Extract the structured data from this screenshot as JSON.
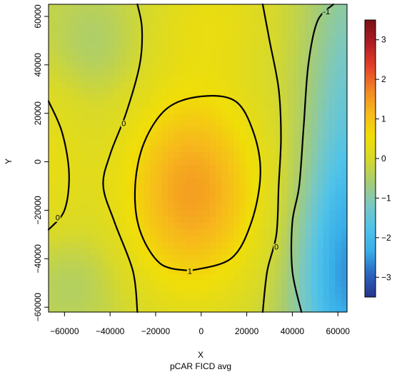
{
  "chart_data": {
    "type": "heatmap",
    "xlabel": "X",
    "ylabel": "Y",
    "subtitle": "pCAR FICD avg",
    "xlim": [
      -67000,
      64000
    ],
    "ylim": [
      -62000,
      65000
    ],
    "x_ticks": [
      -60000,
      -40000,
      -20000,
      0,
      20000,
      40000,
      60000
    ],
    "x_tick_labels": [
      "−60000",
      "−40000",
      "−20000",
      "0",
      "20000",
      "40000",
      "60000"
    ],
    "y_ticks": [
      -60000,
      -40000,
      -20000,
      0,
      20000,
      40000,
      60000
    ],
    "y_tick_labels": [
      "−60000",
      "−40000",
      "−20000",
      "0",
      "20000",
      "40000",
      "60000"
    ],
    "colorbar": {
      "range": [
        -3.5,
        3.5
      ],
      "ticks": [
        -3,
        -2,
        -1,
        0,
        1,
        2,
        3
      ],
      "tick_labels": [
        "−3",
        "−2",
        "−1",
        "0",
        "1",
        "2",
        "3"
      ],
      "colors": [
        "#27348b",
        "#2a64c0",
        "#38aee8",
        "#4fc3ea",
        "#79c8c3",
        "#a6cc74",
        "#d7d92a",
        "#f0de08",
        "#f7b81c",
        "#f18525",
        "#e5402a",
        "#b01e25",
        "#7c1116"
      ]
    },
    "grid": false,
    "legend": "colorbar-right",
    "field_model": {
      "baseline": -0.25,
      "components": [
        {
          "kind": "gaussian",
          "amp": 1.7,
          "cx": -4000,
          "cy": -12000,
          "sx": 23000,
          "sy": 32000
        },
        {
          "kind": "gaussian",
          "amp": 0.55,
          "cx": 5000,
          "cy": 62000,
          "sx": 20000,
          "sy": 18000
        },
        {
          "kind": "gaussian",
          "amp": 0.55,
          "cx": -67000,
          "cy": 0,
          "sx": 14000,
          "sy": 32000
        },
        {
          "kind": "gaussian",
          "amp": -1.9,
          "cx": 64000,
          "cy": -52000,
          "sx": 16000,
          "sy": 35000
        },
        {
          "kind": "gaussian",
          "amp": -1.0,
          "cx": 64000,
          "cy": 20000,
          "sx": 12000,
          "sy": 50000
        },
        {
          "kind": "gaussian",
          "amp": -0.35,
          "cx": -48000,
          "cy": 48000,
          "sx": 14000,
          "sy": 14000
        },
        {
          "kind": "gaussian",
          "amp": -0.35,
          "cx": -58000,
          "cy": -48000,
          "sx": 14000,
          "sy": 14000
        }
      ]
    },
    "contours": [
      {
        "level": 1,
        "label": "1",
        "label_at": [
          -5000,
          -45000
        ],
        "points": [
          [
            -5000,
            -45000
          ],
          [
            -18000,
            -42000
          ],
          [
            -27000,
            -28000
          ],
          [
            -29000,
            -10000
          ],
          [
            -25000,
            8000
          ],
          [
            -15000,
            22000
          ],
          [
            0,
            27000
          ],
          [
            15000,
            25000
          ],
          [
            23000,
            12000
          ],
          [
            26000,
            -5000
          ],
          [
            22000,
            -25000
          ],
          [
            13000,
            -40000
          ],
          [
            -5000,
            -45000
          ]
        ]
      },
      {
        "level": 0,
        "label": "0",
        "label_at": [
          -34000,
          16000
        ],
        "points": [
          [
            -28000,
            -62000
          ],
          [
            -30000,
            -45000
          ],
          [
            -38000,
            -25000
          ],
          [
            -43000,
            -10000
          ],
          [
            -40000,
            3000
          ],
          [
            -33000,
            20000
          ],
          [
            -27000,
            40000
          ],
          [
            -26000,
            55000
          ],
          [
            -28000,
            65000
          ]
        ]
      },
      {
        "level": 0,
        "label": "0",
        "label_at": [
          33000,
          -35000
        ],
        "points": [
          [
            27000,
            65000
          ],
          [
            30000,
            50000
          ],
          [
            34000,
            30000
          ],
          [
            35000,
            10000
          ],
          [
            34000,
            -10000
          ],
          [
            33000,
            -30000
          ],
          [
            29000,
            -45000
          ],
          [
            27000,
            -62000
          ]
        ]
      },
      {
        "level": 0,
        "label": "0",
        "label_at": [
          -63000,
          -23000
        ],
        "points": [
          [
            -67000,
            25000
          ],
          [
            -61000,
            12000
          ],
          [
            -58000,
            -5000
          ],
          [
            -60000,
            -20000
          ],
          [
            -67000,
            -28000
          ]
        ]
      },
      {
        "level": -1,
        "label": "-1",
        "label_at": [
          55000,
          62000
        ],
        "points": [
          [
            58000,
            65000
          ],
          [
            51000,
            58000
          ],
          [
            47000,
            40000
          ],
          [
            45000,
            15000
          ],
          [
            43000,
            -10000
          ],
          [
            40000,
            -25000
          ],
          [
            40000,
            -45000
          ],
          [
            44000,
            -62000
          ]
        ]
      }
    ]
  }
}
